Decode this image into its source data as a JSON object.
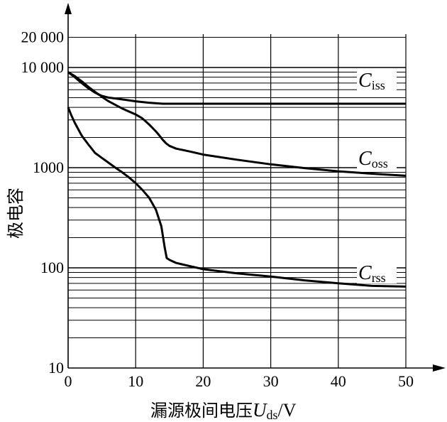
{
  "chart_data": {
    "type": "line",
    "xlabel": {
      "main": "漏源极间电压",
      "symbol": "U",
      "subscript": "ds",
      "unit": "/V"
    },
    "ylabel": "极电容",
    "xlim": [
      0,
      50
    ],
    "ylim": [
      10,
      20000
    ],
    "y_scale": "log",
    "grid": true,
    "x_ticks": [
      0,
      10,
      20,
      30,
      40,
      50
    ],
    "x_tick_labels": [
      "0",
      "10",
      "20",
      "30",
      "40",
      "50"
    ],
    "y_ticks": [
      10,
      100,
      1000,
      10000,
      20000
    ],
    "y_tick_labels": [
      "10",
      "100",
      "1000",
      "10 000",
      "20 000"
    ],
    "series": [
      {
        "name": "Ciss",
        "label_main": "C",
        "label_sub": "iss",
        "points": [
          [
            0,
            9000
          ],
          [
            1,
            8000
          ],
          [
            2,
            7000
          ],
          [
            3,
            6200
          ],
          [
            4,
            5600
          ],
          [
            5,
            5200
          ],
          [
            6,
            5000
          ],
          [
            8,
            4800
          ],
          [
            10,
            4600
          ],
          [
            12,
            4450
          ],
          [
            14,
            4350
          ],
          [
            20,
            4350
          ],
          [
            30,
            4350
          ],
          [
            40,
            4350
          ],
          [
            50,
            4350
          ]
        ]
      },
      {
        "name": "Coss",
        "label_main": "C",
        "label_sub": "oss",
        "points": [
          [
            0,
            9000
          ],
          [
            1,
            8200
          ],
          [
            2,
            7300
          ],
          [
            3,
            6400
          ],
          [
            4,
            5700
          ],
          [
            5,
            5100
          ],
          [
            6,
            4600
          ],
          [
            8,
            3900
          ],
          [
            10,
            3400
          ],
          [
            11,
            3100
          ],
          [
            12,
            2700
          ],
          [
            13,
            2300
          ],
          [
            13.5,
            2100
          ],
          [
            14,
            1900
          ],
          [
            14.5,
            1750
          ],
          [
            15,
            1650
          ],
          [
            16,
            1550
          ],
          [
            18,
            1450
          ],
          [
            20,
            1350
          ],
          [
            25,
            1200
          ],
          [
            30,
            1080
          ],
          [
            35,
            990
          ],
          [
            40,
            920
          ],
          [
            45,
            870
          ],
          [
            50,
            830
          ]
        ]
      },
      {
        "name": "Crss",
        "label_main": "C",
        "label_sub": "rss",
        "points": [
          [
            0,
            4000
          ],
          [
            0.5,
            3300
          ],
          [
            1,
            2800
          ],
          [
            2,
            2100
          ],
          [
            3,
            1700
          ],
          [
            4,
            1400
          ],
          [
            5,
            1250
          ],
          [
            6,
            1120
          ],
          [
            7,
            1000
          ],
          [
            8,
            900
          ],
          [
            9,
            800
          ],
          [
            10,
            700
          ],
          [
            11,
            600
          ],
          [
            12,
            500
          ],
          [
            13,
            380
          ],
          [
            13.8,
            260
          ],
          [
            14.3,
            160
          ],
          [
            14.6,
            125
          ],
          [
            15,
            120
          ],
          [
            16,
            112
          ],
          [
            18,
            104
          ],
          [
            20,
            97
          ],
          [
            25,
            88
          ],
          [
            30,
            82
          ],
          [
            35,
            75
          ],
          [
            40,
            70
          ],
          [
            45,
            66
          ],
          [
            50,
            65
          ]
        ]
      }
    ]
  }
}
